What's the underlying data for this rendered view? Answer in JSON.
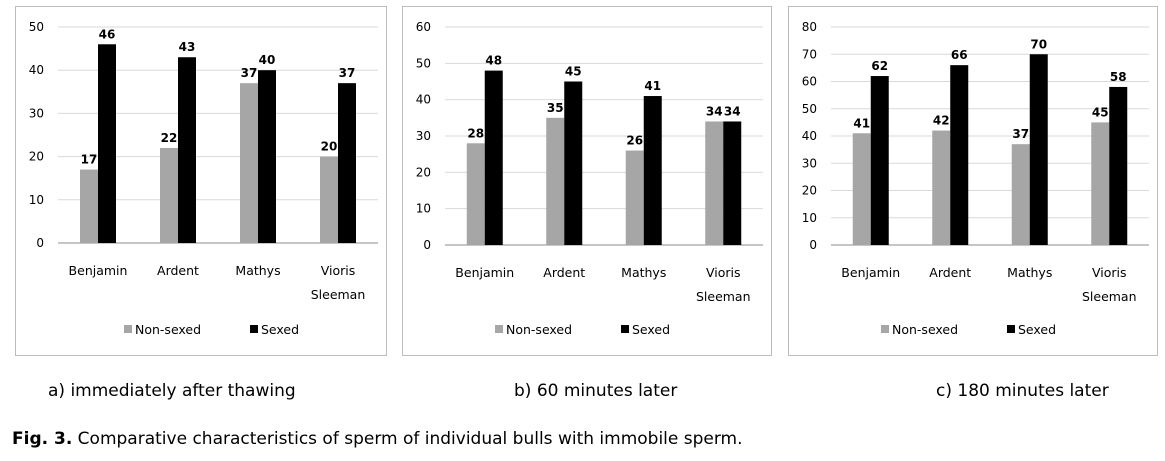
{
  "colors": {
    "non_sexed": "#a6a6a6",
    "sexed": "#000000",
    "grid": "#d9d9d9",
    "frame": "#bdbdbd"
  },
  "chart_data": [
    {
      "type": "bar",
      "caption": "a) immediately after thawing",
      "categories": [
        "Benjamin",
        "Ardent",
        "Mathys",
        "Vioris Sleeman"
      ],
      "series": [
        {
          "name": "Non-sexed",
          "values": [
            17,
            22,
            37,
            20
          ]
        },
        {
          "name": "Sexed",
          "values": [
            46,
            43,
            40,
            37
          ]
        }
      ],
      "ylim": [
        0,
        50
      ],
      "yticks": [
        0,
        10,
        20,
        30,
        40,
        50
      ],
      "grid": true,
      "legend": "bottom"
    },
    {
      "type": "bar",
      "caption": "b) 60 minutes later",
      "categories": [
        "Benjamin",
        "Ardent",
        "Mathys",
        "Vioris Sleeman"
      ],
      "series": [
        {
          "name": "Non-sexed",
          "values": [
            28,
            35,
            26,
            34
          ]
        },
        {
          "name": "Sexed",
          "values": [
            48,
            45,
            41,
            34
          ]
        }
      ],
      "ylim": [
        0,
        60
      ],
      "yticks": [
        0,
        10,
        20,
        30,
        40,
        50,
        60
      ],
      "grid": true,
      "legend": "bottom"
    },
    {
      "type": "bar",
      "caption": "c) 180 minutes later",
      "categories": [
        "Benjamin",
        "Ardent",
        "Mathys",
        "Vioris Sleeman"
      ],
      "series": [
        {
          "name": "Non-sexed",
          "values": [
            41,
            42,
            37,
            45
          ]
        },
        {
          "name": "Sexed",
          "values": [
            62,
            66,
            70,
            58
          ]
        }
      ],
      "ylim": [
        0,
        80
      ],
      "yticks": [
        0,
        10,
        20,
        30,
        40,
        50,
        60,
        70,
        80
      ],
      "grid": true,
      "legend": "bottom"
    }
  ],
  "figure_caption": {
    "label": "Fig. 3.",
    "text": " Comparative characteristics of sperm of individual bulls with immobile sperm."
  }
}
